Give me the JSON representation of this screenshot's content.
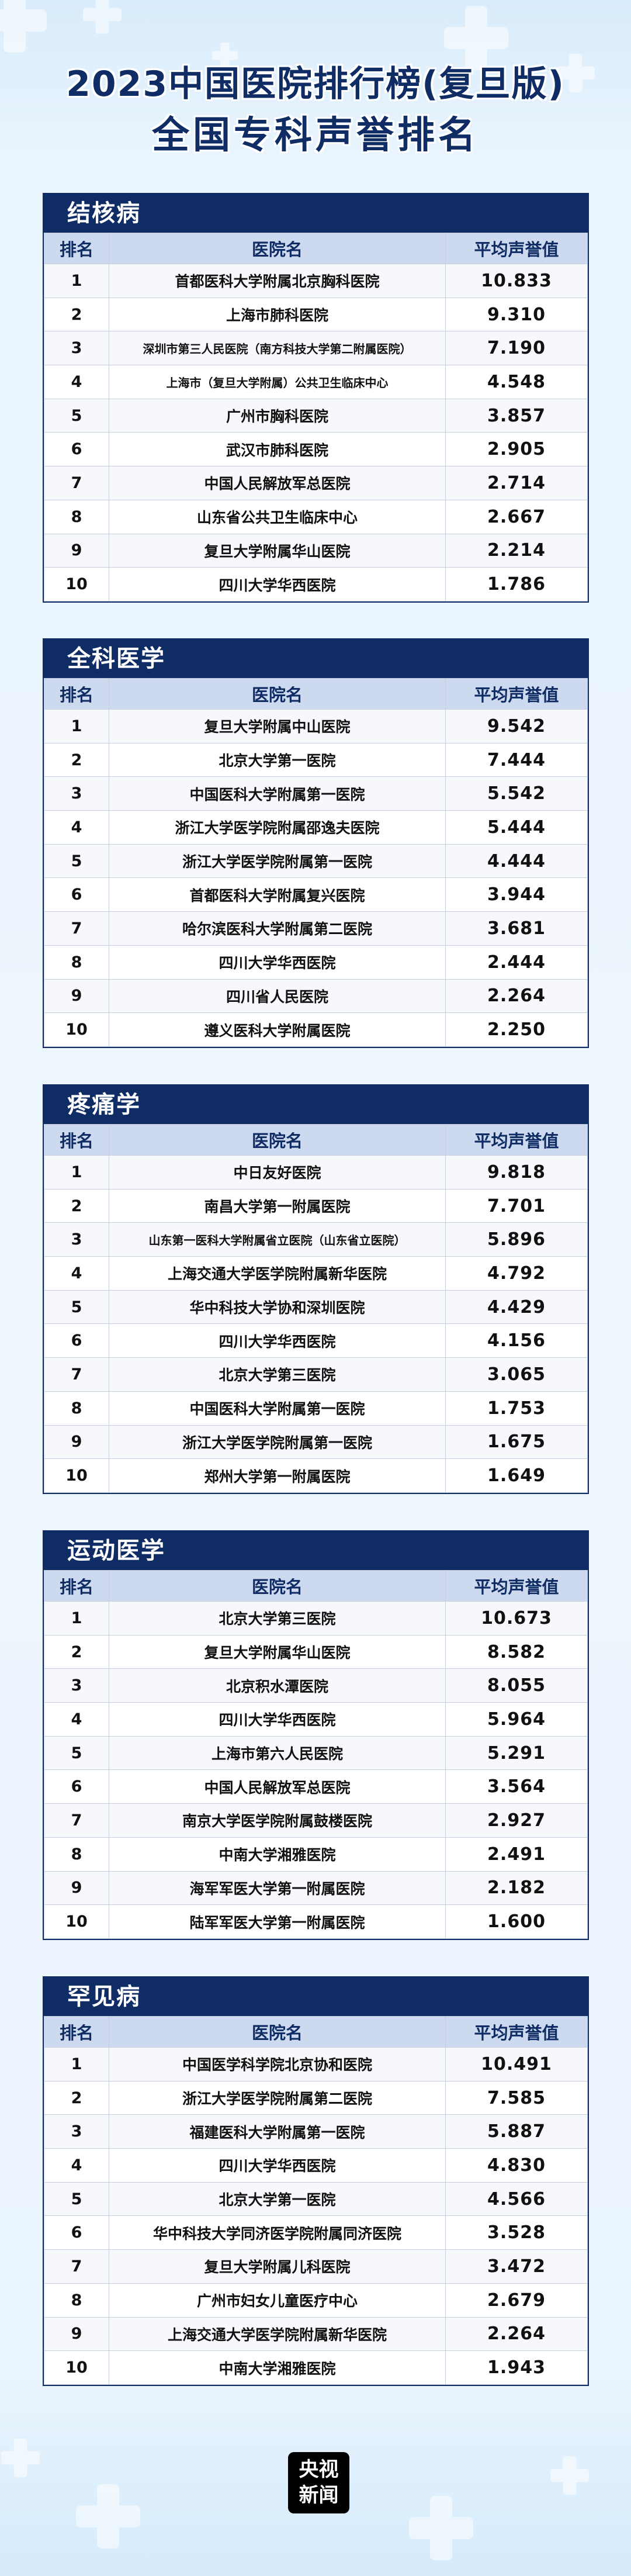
{
  "header": {
    "title_line1": "2023中国医院排行榜(复旦版)",
    "title_line2": "全国专科声誉排名"
  },
  "columns": {
    "rank": "排名",
    "hospital": "医院名",
    "score": "平均声誉值"
  },
  "sections": [
    {
      "title": "结核病",
      "rows": [
        {
          "rank": "1",
          "hospital": "首都医科大学附属北京胸科医院",
          "score": "10.833"
        },
        {
          "rank": "2",
          "hospital": "上海市肺科医院",
          "score": "9.310"
        },
        {
          "rank": "3",
          "hospital": "深圳市第三人民医院（南方科技大学第二附属医院）",
          "score": "7.190"
        },
        {
          "rank": "4",
          "hospital": "上海市（复旦大学附属）公共卫生临床中心",
          "score": "4.548"
        },
        {
          "rank": "5",
          "hospital": "广州市胸科医院",
          "score": "3.857"
        },
        {
          "rank": "6",
          "hospital": "武汉市肺科医院",
          "score": "2.905"
        },
        {
          "rank": "7",
          "hospital": "中国人民解放军总医院",
          "score": "2.714"
        },
        {
          "rank": "8",
          "hospital": "山东省公共卫生临床中心",
          "score": "2.667"
        },
        {
          "rank": "9",
          "hospital": "复旦大学附属华山医院",
          "score": "2.214"
        },
        {
          "rank": "10",
          "hospital": "四川大学华西医院",
          "score": "1.786"
        }
      ]
    },
    {
      "title": "全科医学",
      "rows": [
        {
          "rank": "1",
          "hospital": "复旦大学附属中山医院",
          "score": "9.542"
        },
        {
          "rank": "2",
          "hospital": "北京大学第一医院",
          "score": "7.444"
        },
        {
          "rank": "3",
          "hospital": "中国医科大学附属第一医院",
          "score": "5.542"
        },
        {
          "rank": "4",
          "hospital": "浙江大学医学院附属邵逸夫医院",
          "score": "5.444"
        },
        {
          "rank": "5",
          "hospital": "浙江大学医学院附属第一医院",
          "score": "4.444"
        },
        {
          "rank": "6",
          "hospital": "首都医科大学附属复兴医院",
          "score": "3.944"
        },
        {
          "rank": "7",
          "hospital": "哈尔滨医科大学附属第二医院",
          "score": "3.681"
        },
        {
          "rank": "8",
          "hospital": "四川大学华西医院",
          "score": "2.444"
        },
        {
          "rank": "9",
          "hospital": "四川省人民医院",
          "score": "2.264"
        },
        {
          "rank": "10",
          "hospital": "遵义医科大学附属医院",
          "score": "2.250"
        }
      ]
    },
    {
      "title": "疼痛学",
      "rows": [
        {
          "rank": "1",
          "hospital": "中日友好医院",
          "score": "9.818"
        },
        {
          "rank": "2",
          "hospital": "南昌大学第一附属医院",
          "score": "7.701"
        },
        {
          "rank": "3",
          "hospital": "山东第一医科大学附属省立医院（山东省立医院）",
          "score": "5.896"
        },
        {
          "rank": "4",
          "hospital": "上海交通大学医学院附属新华医院",
          "score": "4.792"
        },
        {
          "rank": "5",
          "hospital": "华中科技大学协和深圳医院",
          "score": "4.429"
        },
        {
          "rank": "6",
          "hospital": "四川大学华西医院",
          "score": "4.156"
        },
        {
          "rank": "7",
          "hospital": "北京大学第三医院",
          "score": "3.065"
        },
        {
          "rank": "8",
          "hospital": "中国医科大学附属第一医院",
          "score": "1.753"
        },
        {
          "rank": "9",
          "hospital": "浙江大学医学院附属第一医院",
          "score": "1.675"
        },
        {
          "rank": "10",
          "hospital": "郑州大学第一附属医院",
          "score": "1.649"
        }
      ]
    },
    {
      "title": "运动医学",
      "rows": [
        {
          "rank": "1",
          "hospital": "北京大学第三医院",
          "score": "10.673"
        },
        {
          "rank": "2",
          "hospital": "复旦大学附属华山医院",
          "score": "8.582"
        },
        {
          "rank": "3",
          "hospital": "北京积水潭医院",
          "score": "8.055"
        },
        {
          "rank": "4",
          "hospital": "四川大学华西医院",
          "score": "5.964"
        },
        {
          "rank": "5",
          "hospital": "上海市第六人民医院",
          "score": "5.291"
        },
        {
          "rank": "6",
          "hospital": "中国人民解放军总医院",
          "score": "3.564"
        },
        {
          "rank": "7",
          "hospital": "南京大学医学院附属鼓楼医院",
          "score": "2.927"
        },
        {
          "rank": "8",
          "hospital": "中南大学湘雅医院",
          "score": "2.491"
        },
        {
          "rank": "9",
          "hospital": "海军军医大学第一附属医院",
          "score": "2.182"
        },
        {
          "rank": "10",
          "hospital": "陆军军医大学第一附属医院",
          "score": "1.600"
        }
      ]
    },
    {
      "title": "罕见病",
      "rows": [
        {
          "rank": "1",
          "hospital": "中国医学科学院北京协和医院",
          "score": "10.491"
        },
        {
          "rank": "2",
          "hospital": "浙江大学医学院附属第二医院",
          "score": "7.585"
        },
        {
          "rank": "3",
          "hospital": "福建医科大学附属第一医院",
          "score": "5.887"
        },
        {
          "rank": "4",
          "hospital": "四川大学华西医院",
          "score": "4.830"
        },
        {
          "rank": "5",
          "hospital": "北京大学第一医院",
          "score": "4.566"
        },
        {
          "rank": "6",
          "hospital": "华中科技大学同济医学院附属同济医院",
          "score": "3.528"
        },
        {
          "rank": "7",
          "hospital": "复旦大学附属儿科医院",
          "score": "3.472"
        },
        {
          "rank": "8",
          "hospital": "广州市妇女儿童医疗中心",
          "score": "2.679"
        },
        {
          "rank": "9",
          "hospital": "上海交通大学医学院附属新华医院",
          "score": "2.264"
        },
        {
          "rank": "10",
          "hospital": "中南大学湘雅医院",
          "score": "1.943"
        }
      ]
    }
  ],
  "footer": {
    "logo_line1": "央视",
    "logo_line2": "新闻"
  }
}
